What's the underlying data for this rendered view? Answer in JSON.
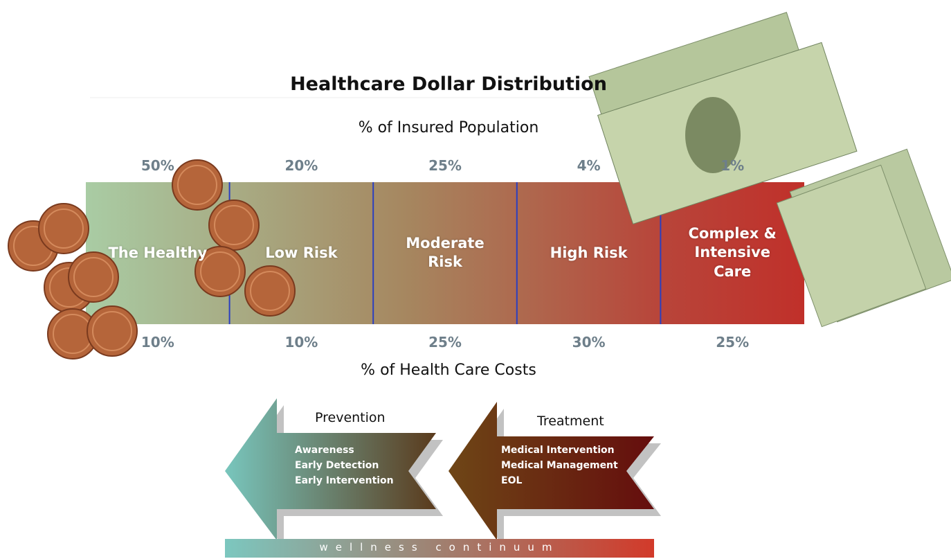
{
  "title": "Healthcare Dollar Distribution",
  "population_label": "% of Insured Population",
  "costs_label": "% of Health Care Costs",
  "segments": [
    {
      "name": "The Healthy",
      "population": "50%",
      "costs": "10%"
    },
    {
      "name": "Low Risk",
      "population": "20%",
      "costs": "10%"
    },
    {
      "name": "Moderate Risk",
      "population": "25%",
      "costs": "25%"
    },
    {
      "name": "High Risk",
      "population": "4%",
      "costs": "30%"
    },
    {
      "name": "Complex & Intensive Care",
      "population": "1%",
      "costs": "25%"
    }
  ],
  "prevention": {
    "title": "Prevention",
    "items": [
      "Awareness",
      "Early Detection",
      "Early Intervention"
    ]
  },
  "treatment": {
    "title": "Treatment",
    "items": [
      "Medical Intervention",
      "Medical Management",
      "EOL"
    ]
  },
  "continuum": "wellness continuum"
}
